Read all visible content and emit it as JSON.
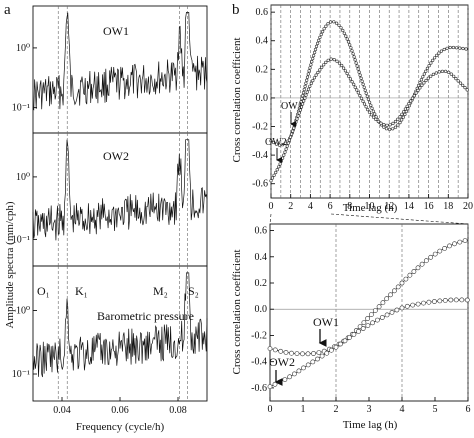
{
  "labels": {
    "panel_a": "a",
    "panel_b": "b",
    "ylabel_a": "Amplitude spectra (mm/cph)",
    "xlabel_a": "Frequency (cycle/h)",
    "ylabel_b_top": "Cross correlation coefficient",
    "ylabel_b_bottom": "Cross correlation coefficient",
    "xlabel_b_top": "Time lag (h)",
    "xlabel_b_bottom": "Time lag (h)",
    "tide_O1": "O₁",
    "tide_K1": "K₁",
    "tide_M2": "M₂",
    "tide_S2": "S₂",
    "arrow_OW1_top": "OW1",
    "arrow_OW2_top": "OW2",
    "arrow_OW1_bottom": "OW1",
    "arrow_OW2_bottom": "OW2"
  },
  "chart_data": [
    {
      "id": "a1",
      "type": "line",
      "title": "OW1",
      "xlim": [
        0.03,
        0.09
      ],
      "yscale": "log",
      "yticks": [
        "10⁰",
        "10⁻¹"
      ],
      "xticks": [],
      "tide_lines": [
        0.0387,
        0.0418,
        0.0805,
        0.0833
      ],
      "peaks": [
        {
          "x": 0.0418,
          "height": 0.7
        },
        {
          "x": 0.0805,
          "height": 0.35
        },
        {
          "x": 0.0833,
          "height": 0.9
        }
      ]
    },
    {
      "id": "a2",
      "type": "line",
      "title": "OW2",
      "xlim": [
        0.03,
        0.09
      ],
      "yscale": "log",
      "yticks": [
        "10⁰",
        "10⁻¹"
      ],
      "xticks": [],
      "tide_lines": [
        0.0387,
        0.0418,
        0.0805,
        0.0833
      ],
      "peaks": [
        {
          "x": 0.0418,
          "height": 0.65
        },
        {
          "x": 0.0805,
          "height": 0.4
        },
        {
          "x": 0.0833,
          "height": 0.9
        }
      ]
    },
    {
      "id": "a3",
      "type": "line",
      "title": "Barometric pressure",
      "xlim": [
        0.03,
        0.09
      ],
      "yscale": "log",
      "yticks": [
        "10⁰",
        "10⁻¹"
      ],
      "xticks": [
        "0.04",
        "0.06",
        "0.08"
      ],
      "xtick_values": [
        0.04,
        0.06,
        0.08
      ],
      "tide_lines": [
        0.0387,
        0.0418,
        0.0805,
        0.0833
      ],
      "peaks": [
        {
          "x": 0.0418,
          "height": 0.4
        },
        {
          "x": 0.0833,
          "height": 0.95
        }
      ]
    },
    {
      "id": "b1",
      "type": "line",
      "xlim": [
        0,
        20
      ],
      "ylim": [
        -0.7,
        0.65
      ],
      "xticks": [
        0,
        2,
        4,
        6,
        8,
        10,
        12,
        14,
        16,
        18,
        20
      ],
      "yticks": [
        -0.6,
        -0.4,
        -0.2,
        0.0,
        0.2,
        0.4,
        0.6
      ],
      "ytick_labels": [
        "-0.6",
        "-0.4",
        "-0.2",
        "0.0",
        "0.2",
        "0.4",
        "0.6"
      ],
      "grid_x": [
        0,
        1,
        2,
        3,
        4,
        5,
        6,
        7,
        8,
        9,
        10,
        11,
        12,
        13,
        14,
        15,
        16,
        17,
        18,
        19,
        20
      ],
      "series": [
        {
          "x": [
            0,
            1,
            2,
            3,
            4,
            5,
            6,
            7,
            8,
            9,
            10,
            11,
            12,
            13,
            14,
            15,
            16,
            17,
            18,
            19,
            20
          ],
          "y": [
            -0.3,
            -0.33,
            -0.27,
            -0.04,
            0.22,
            0.43,
            0.53,
            0.5,
            0.37,
            0.17,
            -0.03,
            -0.17,
            -0.22,
            -0.18,
            -0.06,
            0.09,
            0.22,
            0.31,
            0.35,
            0.35,
            0.34
          ]
        },
        {
          "x": [
            0,
            1,
            2,
            3,
            4,
            5,
            6,
            7,
            8,
            9,
            10,
            11,
            12,
            13,
            14,
            15,
            16,
            17,
            18,
            19,
            20
          ],
          "y": [
            -0.58,
            -0.45,
            -0.27,
            -0.08,
            0.09,
            0.2,
            0.27,
            0.24,
            0.14,
            0.02,
            -0.1,
            -0.17,
            -0.19,
            -0.14,
            -0.04,
            0.06,
            0.14,
            0.18,
            0.18,
            0.12,
            0.05
          ]
        }
      ]
    },
    {
      "id": "b2",
      "type": "line",
      "xlim": [
        0,
        6
      ],
      "ylim": [
        -0.7,
        0.65
      ],
      "xticks": [
        0,
        1,
        2,
        3,
        4,
        5,
        6
      ],
      "yticks": [
        -0.6,
        -0.4,
        -0.2,
        0.0,
        0.2,
        0.4,
        0.6
      ],
      "ytick_labels": [
        "-0.6",
        "-0.4",
        "-0.2",
        "0.0",
        "0.2",
        "0.4",
        "0.6"
      ],
      "grid_x": [
        2,
        4,
        6
      ],
      "series": [
        {
          "x": [
            0,
            0.5,
            1,
            1.5,
            2,
            2.5,
            3,
            3.5,
            4,
            4.5,
            5,
            5.5,
            6
          ],
          "y": [
            -0.3,
            -0.33,
            -0.34,
            -0.33,
            -0.28,
            -0.19,
            -0.06,
            0.07,
            0.2,
            0.32,
            0.42,
            0.49,
            0.53
          ]
        },
        {
          "x": [
            0,
            0.5,
            1,
            1.5,
            2,
            2.5,
            3,
            3.5,
            4,
            4.5,
            5,
            5.5,
            6
          ],
          "y": [
            -0.59,
            -0.53,
            -0.45,
            -0.37,
            -0.29,
            -0.2,
            -0.12,
            -0.05,
            0.01,
            0.04,
            0.06,
            0.07,
            0.07
          ]
        }
      ],
      "arrows": [
        {
          "label": "OW1",
          "x": 1.4,
          "y": -0.33
        },
        {
          "label": "OW2",
          "x": 0.0,
          "y": -0.59
        }
      ]
    }
  ],
  "colors": {
    "axis": "#111111",
    "series": "#333333",
    "grid": "#666666"
  }
}
